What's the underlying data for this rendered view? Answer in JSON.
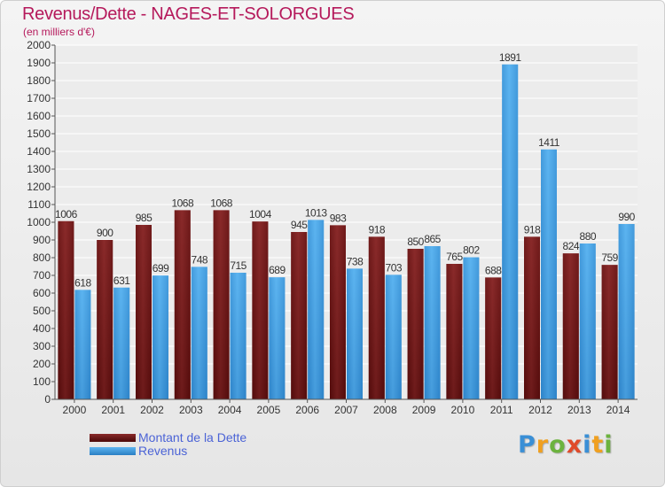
{
  "header": {
    "title": "Revenus/Dette - NAGES-ET-SOLORGUES",
    "subtitle": "(en milliers d'€)"
  },
  "legend": {
    "debt_label": "Montant de la Dette",
    "revenue_label": "Revenus"
  },
  "logo": {
    "text": "Proxiti",
    "letters": [
      "P",
      "r",
      "o",
      "x",
      "i",
      "t",
      "i"
    ],
    "letter_colors": [
      "#3a8fd6",
      "#f0a020",
      "#6cb33e",
      "#e04a2a",
      "#3a8fd6",
      "#f0a020",
      "#6cb33e"
    ]
  },
  "colors": {
    "debt": "#7a1e1e",
    "revenue": "#3b9be0",
    "title": "#b5195b",
    "legend_text": "#4b63d6"
  },
  "chart_data": {
    "type": "bar",
    "categories": [
      "2000",
      "2001",
      "2002",
      "2003",
      "2004",
      "2005",
      "2006",
      "2007",
      "2008",
      "2009",
      "2010",
      "2011",
      "2012",
      "2013",
      "2014"
    ],
    "series": [
      {
        "name": "Montant de la Dette",
        "values": [
          1006,
          900,
          985,
          1068,
          1068,
          1004,
          945,
          983,
          918,
          850,
          765,
          688,
          918,
          824,
          759
        ]
      },
      {
        "name": "Revenus",
        "values": [
          618,
          631,
          699,
          748,
          715,
          689,
          1013,
          738,
          703,
          865,
          802,
          1891,
          1411,
          880,
          990
        ]
      }
    ],
    "title": "Revenus/Dette - NAGES-ET-SOLORGUES",
    "subtitle": "(en milliers d'€)",
    "ylim": [
      0,
      2000
    ],
    "yticks": [
      0,
      100,
      200,
      300,
      400,
      500,
      600,
      700,
      800,
      900,
      1000,
      1100,
      1200,
      1300,
      1400,
      1500,
      1600,
      1700,
      1800,
      1900,
      2000
    ],
    "grid": true,
    "legend_position": "bottom-left"
  }
}
